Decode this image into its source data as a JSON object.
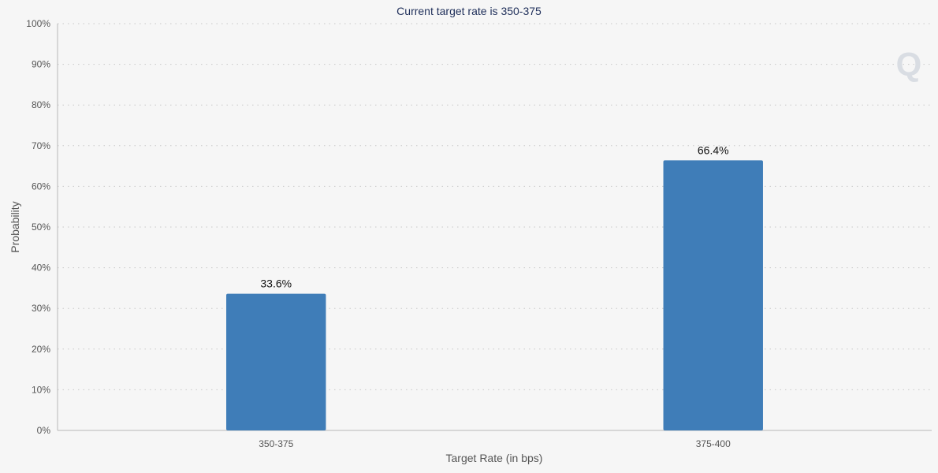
{
  "chart_data": {
    "type": "bar",
    "title": "Current target rate is 350-375",
    "xlabel": "Target Rate (in bps)",
    "ylabel": "Probability",
    "categories": [
      "350-375",
      "375-400"
    ],
    "values": [
      33.6,
      66.4
    ],
    "data_labels": [
      "33.6%",
      "66.4%"
    ],
    "ylim": [
      0,
      100
    ],
    "yticks": [
      0,
      10,
      20,
      30,
      40,
      50,
      60,
      70,
      80,
      90,
      100
    ],
    "ytick_labels": [
      "0%",
      "10%",
      "20%",
      "30%",
      "40%",
      "50%",
      "60%",
      "70%",
      "80%",
      "90%",
      "100%"
    ],
    "grid": true,
    "legend": "none",
    "colors": {
      "bar": "#3f7db8",
      "grid": "#c8c8c8",
      "axis": "#b8b8b8",
      "title": "#1f2f5a",
      "background": "#f6f6f6"
    },
    "watermark": {
      "letter": "Q",
      "color": "#d9dde3"
    }
  }
}
